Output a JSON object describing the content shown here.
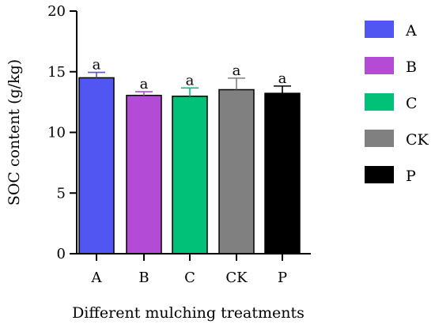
{
  "chart_data": {
    "type": "bar",
    "title": "",
    "xlabel": "Different mulching treatments",
    "ylabel": "SOC content (g/kg)",
    "ylim": [
      0,
      20
    ],
    "yticks": [
      0,
      5,
      10,
      15,
      20
    ],
    "grid": false,
    "legend_position": "right",
    "categories": [
      "A",
      "B",
      "C",
      "CK",
      "P"
    ],
    "values": [
      14.5,
      13.05,
      12.98,
      13.52,
      13.22
    ],
    "errors": [
      0.45,
      0.3,
      0.68,
      0.95,
      0.6
    ],
    "significance_labels": [
      "a",
      "a",
      "a",
      "a",
      "a"
    ],
    "colors": [
      "#5155F2",
      "#B44BD6",
      "#00C177",
      "#808080",
      "#000000"
    ],
    "error_colors": [
      "#5155F2",
      "#B44BD6",
      "#00C177",
      "#808080",
      "#000000"
    ],
    "legend": [
      {
        "label": "A",
        "color": "#5155F2"
      },
      {
        "label": "B",
        "color": "#B44BD6"
      },
      {
        "label": "C",
        "color": "#00C177"
      },
      {
        "label": "CK",
        "color": "#808080"
      },
      {
        "label": "P",
        "color": "#000000"
      }
    ]
  }
}
